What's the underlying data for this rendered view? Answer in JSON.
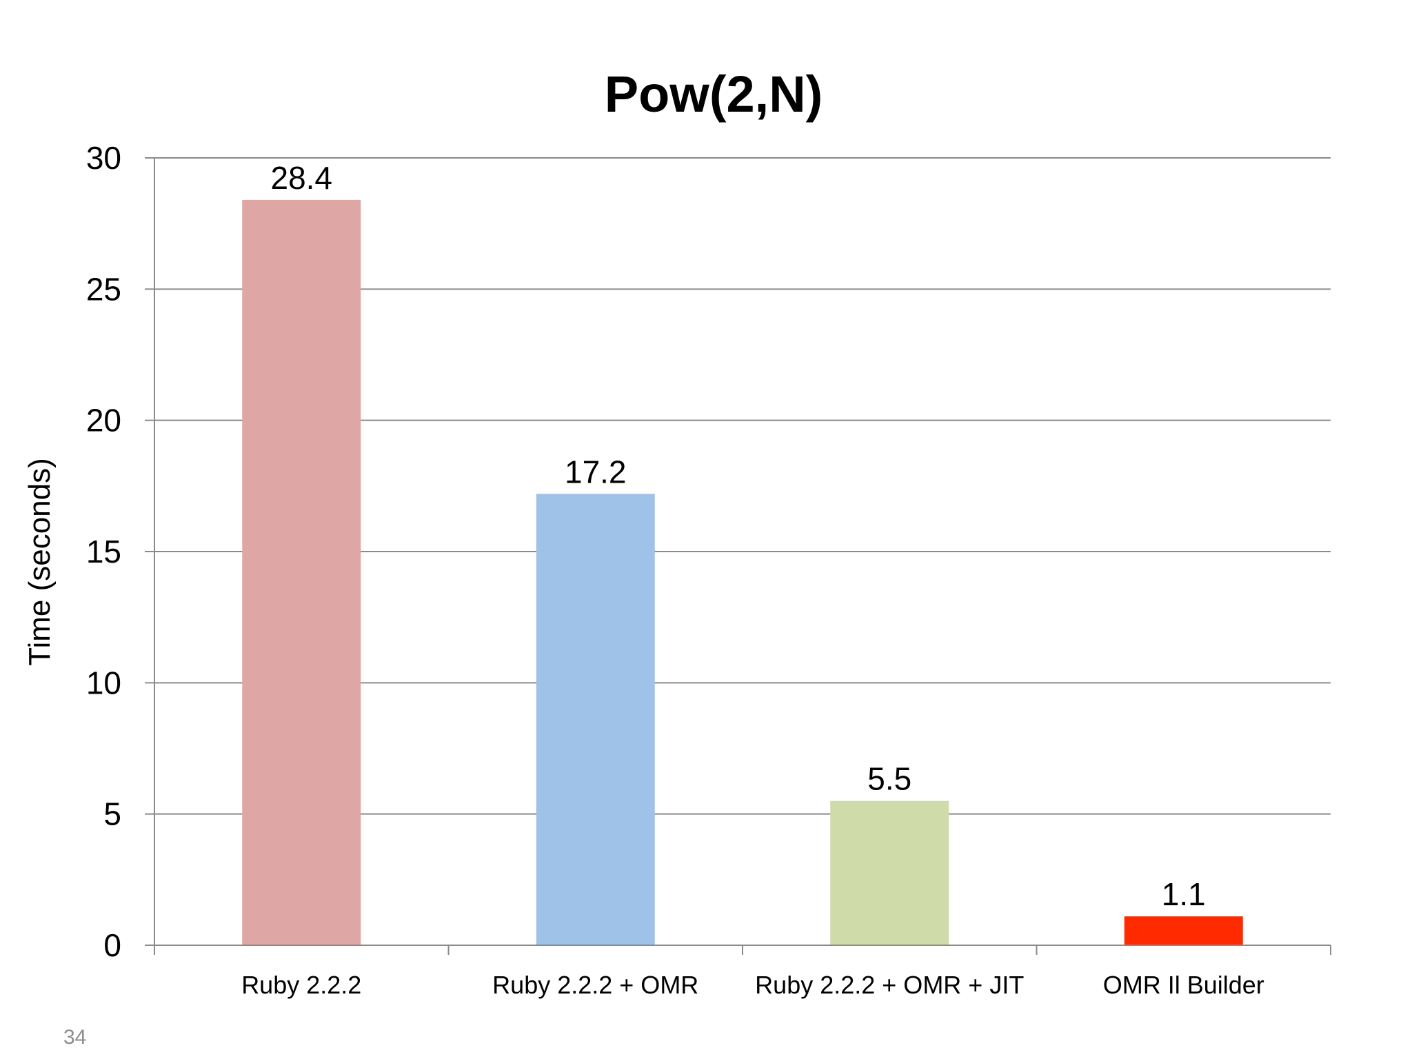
{
  "chart_data": {
    "type": "bar",
    "title": "Pow(2,N)",
    "xlabel": "",
    "ylabel": "Time (seconds)",
    "categories": [
      "Ruby 2.2.2",
      "Ruby 2.2.2 + OMR",
      "Ruby 2.2.2 + OMR + JIT",
      "OMR Il Builder"
    ],
    "values": [
      28.4,
      17.2,
      5.5,
      1.1
    ],
    "data_labels": [
      "28.4",
      "17.2",
      "5.5",
      "1.1"
    ],
    "bar_colors": [
      "#dfa6a6",
      "#9fc2e8",
      "#cfdcaa",
      "#ff2a00"
    ],
    "ylim": [
      0,
      30
    ],
    "yticks": [
      0,
      5,
      10,
      15,
      20,
      25,
      30
    ],
    "ytick_labels": [
      "0",
      "5",
      "10",
      "15",
      "20",
      "25",
      "30"
    ],
    "grid": true,
    "legend": "none"
  },
  "slide": {
    "number": "34"
  }
}
